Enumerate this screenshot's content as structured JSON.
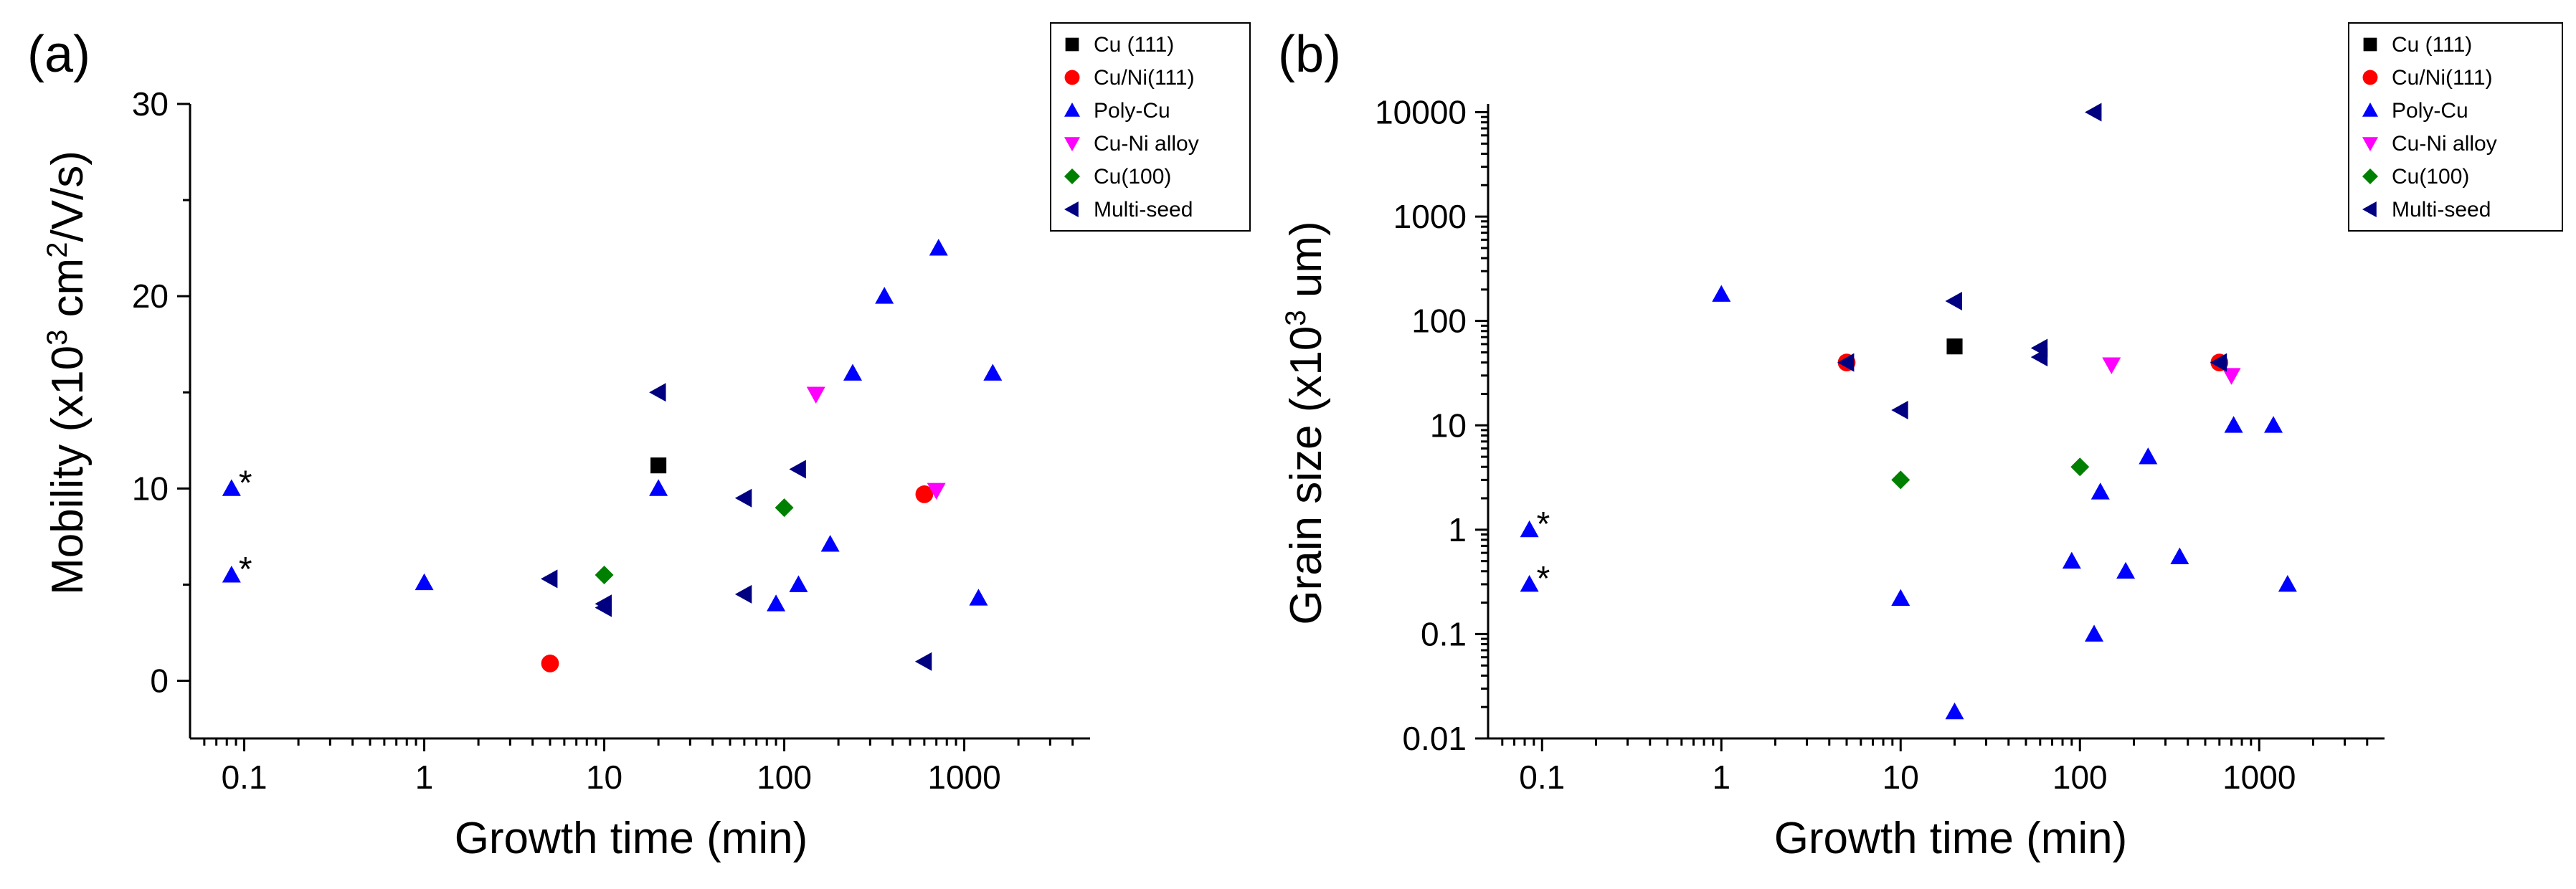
{
  "series_styles": {
    "cu111": {
      "name": "Cu (111)",
      "color": "#000000",
      "marker": "square"
    },
    "cuni111": {
      "name": "Cu/Ni(111)",
      "color": "#ff0000",
      "marker": "circle"
    },
    "polycu": {
      "name": "Poly-Cu",
      "color": "#0000ff",
      "marker": "triangle-up"
    },
    "cunialloy": {
      "name": "Cu-Ni alloy",
      "color": "#ff00ff",
      "marker": "triangle-down"
    },
    "cu100": {
      "name": "Cu(100)",
      "color": "#008000",
      "marker": "diamond"
    },
    "multiseed": {
      "name": "Multi-seed",
      "color": "#000080",
      "marker": "triangle-left"
    }
  },
  "chart_data": [
    {
      "panel": "(a)",
      "type": "scatter",
      "xlabel": "Growth time (min)",
      "ylabel": {
        "prefix": "Mobility (x10",
        "sup1": "3",
        "mid": " cm",
        "sup2": "2",
        "suffix": "/V/s)"
      },
      "xscale": "log",
      "yscale": "linear",
      "xlim": [
        0.05,
        5000
      ],
      "ylim": [
        -3,
        30
      ],
      "xticks": [
        0.1,
        1,
        10,
        100,
        1000
      ],
      "xtick_labels": [
        "0.1",
        "1",
        "10",
        "100",
        "1000"
      ],
      "yticks": [
        0,
        10,
        20,
        30
      ],
      "ytick_labels": [
        "0",
        "10",
        "20",
        "30"
      ],
      "legend_position": "top-right",
      "annotations": [
        {
          "text": "*",
          "x": 0.085,
          "y": 10
        },
        {
          "text": "*",
          "x": 0.085,
          "y": 5.5
        }
      ],
      "series": [
        {
          "key": "cu111",
          "points": [
            [
              20,
              11.2
            ]
          ]
        },
        {
          "key": "cuni111",
          "points": [
            [
              5,
              0.9
            ],
            [
              600,
              9.7
            ]
          ]
        },
        {
          "key": "polycu",
          "points": [
            [
              0.085,
              10
            ],
            [
              0.085,
              5.5
            ],
            [
              1,
              5.1
            ],
            [
              20,
              10
            ],
            [
              90,
              4
            ],
            [
              120,
              5
            ],
            [
              180,
              7.1
            ],
            [
              240,
              16
            ],
            [
              360,
              20
            ],
            [
              720,
              22.5
            ],
            [
              1200,
              4.3
            ],
            [
              1440,
              16
            ]
          ]
        },
        {
          "key": "cunialloy",
          "points": [
            [
              150,
              14.9
            ],
            [
              700,
              9.9
            ]
          ]
        },
        {
          "key": "cu100",
          "points": [
            [
              10,
              5.5
            ],
            [
              100,
              9
            ]
          ]
        },
        {
          "key": "multiseed",
          "points": [
            [
              5,
              5.3
            ],
            [
              10,
              4
            ],
            [
              10,
              3.8
            ],
            [
              20,
              15
            ],
            [
              60,
              9.5
            ],
            [
              60,
              4.5
            ],
            [
              120,
              11
            ],
            [
              600,
              1
            ]
          ]
        }
      ]
    },
    {
      "panel": "(b)",
      "type": "scatter",
      "xlabel": "Growth time (min)",
      "ylabel": {
        "prefix": "Grain size (x10",
        "sup1": "3",
        "mid": " um)",
        "sup2": "",
        "suffix": ""
      },
      "xscale": "log",
      "yscale": "log",
      "xlim": [
        0.05,
        5000
      ],
      "ylim": [
        0.01,
        12000
      ],
      "xticks": [
        0.1,
        1,
        10,
        100,
        1000
      ],
      "xtick_labels": [
        "0.1",
        "1",
        "10",
        "100",
        "1000"
      ],
      "yticks": [
        0.01,
        0.1,
        1,
        10,
        100,
        1000,
        10000
      ],
      "ytick_labels": [
        "0.01",
        "0.1",
        "1",
        "10",
        "100",
        "1000",
        "10000"
      ],
      "legend_position": "top-right",
      "annotations": [
        {
          "text": "*",
          "x": 0.085,
          "y": 1
        },
        {
          "text": "*",
          "x": 0.085,
          "y": 0.3
        }
      ],
      "series": [
        {
          "key": "cu111",
          "points": [
            [
              20,
              57
            ]
          ]
        },
        {
          "key": "cuni111",
          "points": [
            [
              5,
              40
            ],
            [
              600,
              40
            ]
          ]
        },
        {
          "key": "polycu",
          "points": [
            [
              0.085,
              1
            ],
            [
              0.085,
              0.3
            ],
            [
              1,
              180
            ],
            [
              10,
              0.22
            ],
            [
              20,
              0.018
            ],
            [
              90,
              0.5
            ],
            [
              120,
              0.1
            ],
            [
              130,
              2.3
            ],
            [
              180,
              0.4
            ],
            [
              240,
              5
            ],
            [
              360,
              0.55
            ],
            [
              720,
              10
            ],
            [
              1200,
              10
            ],
            [
              1440,
              0.3
            ]
          ]
        },
        {
          "key": "cunialloy",
          "points": [
            [
              150,
              38
            ],
            [
              700,
              30
            ]
          ]
        },
        {
          "key": "cu100",
          "points": [
            [
              10,
              3
            ],
            [
              100,
              4
            ]
          ]
        },
        {
          "key": "multiseed",
          "points": [
            [
              5,
              40
            ],
            [
              10,
              14
            ],
            [
              20,
              155
            ],
            [
              60,
              55
            ],
            [
              60,
              45
            ],
            [
              120,
              10000
            ],
            [
              600,
              40
            ]
          ]
        }
      ]
    }
  ]
}
